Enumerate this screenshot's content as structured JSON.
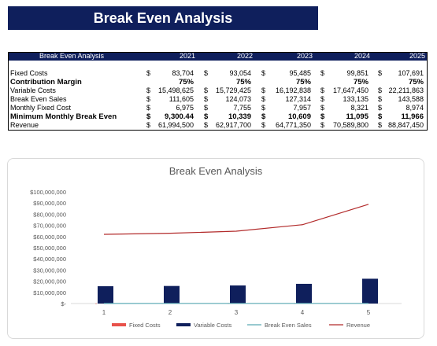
{
  "banner": {
    "title": "Break Even Analysis"
  },
  "table": {
    "header_label": "Break Even Analysis",
    "years": [
      "2021",
      "2022",
      "2023",
      "2024",
      "2025"
    ],
    "rows": [
      {
        "label": "Fixed Costs",
        "bold": false,
        "currency": true,
        "values": [
          "83,704",
          "93,054",
          "95,485",
          "99,851",
          "107,691"
        ]
      },
      {
        "label": "Contribution Margin",
        "bold": true,
        "currency": false,
        "values": [
          "75%",
          "75%",
          "75%",
          "75%",
          "75%"
        ]
      },
      {
        "label": "Variable Costs",
        "bold": false,
        "currency": true,
        "values": [
          "15,498,625",
          "15,729,425",
          "16,192,838",
          "17,647,450",
          "22,211,863"
        ]
      },
      {
        "label": "Break Even Sales",
        "bold": false,
        "currency": true,
        "values": [
          "111,605",
          "124,073",
          "127,314",
          "133,135",
          "143,588"
        ]
      },
      {
        "label": "Monthly Fixed Cost",
        "bold": false,
        "currency": true,
        "values": [
          "6,975",
          "7,755",
          "7,957",
          "8,321",
          "8,974"
        ]
      },
      {
        "label": "Minimum Monthly Break Even",
        "bold": true,
        "currency": true,
        "values": [
          "9,300.44",
          "10,339",
          "10,609",
          "11,095",
          "11,966"
        ]
      },
      {
        "label": "Revenue",
        "bold": false,
        "currency": true,
        "values": [
          "61,994,500",
          "62,917,700",
          "64,771,350",
          "70,589,800",
          "88,847,450"
        ]
      }
    ],
    "currency_symbol": "$"
  },
  "chart_data": {
    "type": "bar",
    "title": "Break Even Analysis",
    "categories": [
      "1",
      "2",
      "3",
      "4",
      "5"
    ],
    "ylim": [
      0,
      100000000
    ],
    "yticks": [
      "$-",
      "$10,000,000",
      "$20,000,000",
      "$30,000,000",
      "$40,000,000",
      "$50,000,000",
      "$60,000,000",
      "$70,000,000",
      "$80,000,000",
      "$90,000,000",
      "$100,000,000"
    ],
    "grid": false,
    "legend_position": "bottom",
    "series": [
      {
        "name": "Fixed Costs",
        "kind": "bar",
        "color": "#e8514a",
        "values": [
          83704,
          93054,
          95485,
          99851,
          107691
        ]
      },
      {
        "name": "Variable Costs",
        "kind": "bar",
        "color": "#0f1f5c",
        "values": [
          15498625,
          15729425,
          16192838,
          17647450,
          22211863
        ]
      },
      {
        "name": "Break Even Sales",
        "kind": "line",
        "color": "#5aaab5",
        "values": [
          111605,
          124073,
          127314,
          133135,
          143588
        ]
      },
      {
        "name": "Revenue",
        "kind": "line",
        "color": "#b22a2a",
        "values": [
          61994500,
          62917700,
          64771350,
          70589800,
          88847450
        ]
      }
    ]
  }
}
